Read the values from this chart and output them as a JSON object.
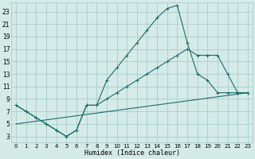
{
  "bg_color": "#d5ebe8",
  "grid_color": "#a8ccc9",
  "line_color": "#1a6b6b",
  "xlabel": "Humidex (Indice chaleur)",
  "xlim": [
    -0.5,
    23.5
  ],
  "ylim": [
    2,
    24.5
  ],
  "xticks": [
    0,
    1,
    2,
    3,
    4,
    5,
    6,
    7,
    8,
    9,
    10,
    11,
    12,
    13,
    14,
    15,
    16,
    17,
    18,
    19,
    20,
    21,
    22,
    23
  ],
  "yticks": [
    3,
    5,
    7,
    9,
    11,
    13,
    15,
    17,
    19,
    21,
    23
  ],
  "curve1_x": [
    0,
    1,
    2,
    3,
    4,
    5,
    6,
    7,
    8,
    9,
    10,
    11,
    12,
    13,
    14,
    15,
    16,
    17,
    18,
    19,
    20,
    21,
    22,
    23
  ],
  "curve1_y": [
    8,
    7,
    6,
    5,
    4,
    3,
    4,
    8,
    8,
    12,
    14,
    16,
    18,
    20,
    22,
    23.5,
    24,
    18,
    13,
    12,
    10,
    10,
    10,
    10
  ],
  "curve2_x": [
    0,
    1,
    2,
    3,
    4,
    5,
    6,
    7,
    8,
    9,
    10,
    11,
    12,
    13,
    14,
    15,
    16,
    17,
    18,
    19,
    20,
    21,
    22,
    23
  ],
  "curve2_y": [
    8,
    7,
    6,
    5,
    4,
    3,
    4,
    8,
    8,
    9,
    10,
    11,
    12,
    13,
    14,
    15,
    16,
    17,
    16,
    16,
    16,
    13,
    10,
    10
  ],
  "curve3_x": [
    0,
    23
  ],
  "curve3_y": [
    5,
    10
  ],
  "marker": "+"
}
